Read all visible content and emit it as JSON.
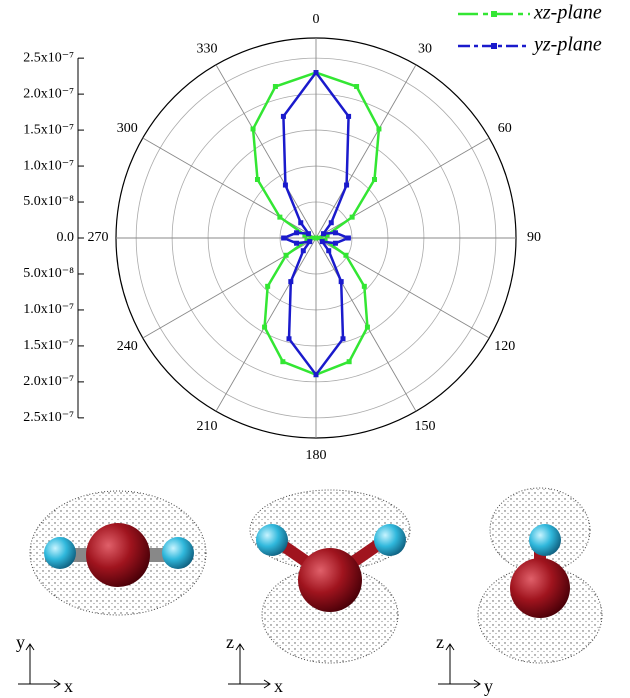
{
  "chart_data": {
    "type": "polar",
    "theta": [
      0,
      15,
      30,
      45,
      60,
      75,
      90,
      105,
      120,
      135,
      150,
      165,
      180,
      195,
      210,
      225,
      240,
      255,
      270,
      285,
      300,
      315,
      330,
      345
    ],
    "series": [
      {
        "name": "xz-plane",
        "color": "#33e633",
        "values": [
          2.3e-07,
          2.18e-07,
          1.75e-07,
          1.15e-07,
          5.8e-08,
          1.6e-08,
          0,
          1.3e-08,
          4.8e-08,
          9.5e-08,
          1.43e-07,
          1.78e-07,
          1.9e-07,
          1.78e-07,
          1.43e-07,
          9.5e-08,
          4.8e-08,
          1.3e-08,
          0,
          1.6e-08,
          5.8e-08,
          1.15e-07,
          1.75e-07,
          2.18e-07
        ]
      },
      {
        "name": "yz-plane",
        "color": "#1a1acc",
        "values": [
          2.3e-07,
          1.75e-07,
          8.5e-08,
          3e-08,
          1.2e-08,
          2.8e-08,
          4.5e-08,
          2.8e-08,
          1e-08,
          2.5e-08,
          7e-08,
          1.45e-07,
          1.9e-07,
          1.45e-07,
          7e-08,
          2.5e-08,
          1e-08,
          2.8e-08,
          4.5e-08,
          2.8e-08,
          1.2e-08,
          3e-08,
          8.5e-08,
          1.75e-07
        ]
      }
    ],
    "rlim": [
      0,
      2.78e-07
    ],
    "rticks": [
      {
        "value": 0,
        "label": "0.0"
      },
      {
        "value": 5e-08,
        "label": "5.0x10⁻⁸"
      },
      {
        "value": 1e-07,
        "label": "1.0x10⁻⁷"
      },
      {
        "value": 1.5e-07,
        "label": "1.5x10⁻⁷"
      },
      {
        "value": 2e-07,
        "label": "2.0x10⁻⁷"
      },
      {
        "value": 2.5e-07,
        "label": "2.5x10⁻⁷"
      }
    ],
    "thetaticks": [
      0,
      30,
      60,
      90,
      120,
      150,
      180,
      210,
      240,
      270,
      300,
      330
    ],
    "grid": true,
    "legend": "upper right"
  },
  "panels": [
    {
      "vertical": "y",
      "horizontal": "x"
    },
    {
      "vertical": "z",
      "horizontal": "x"
    },
    {
      "vertical": "z",
      "horizontal": "y"
    }
  ]
}
